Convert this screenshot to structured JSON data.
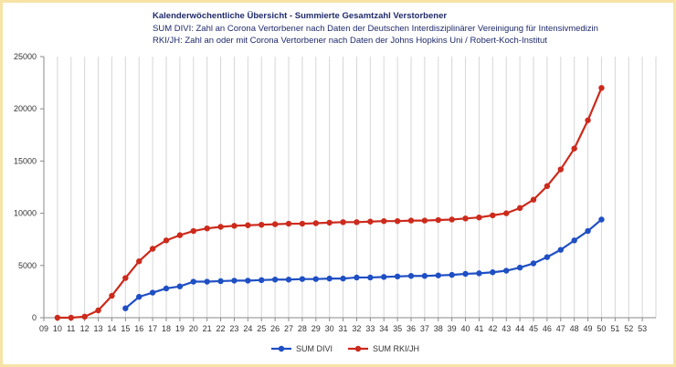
{
  "chart_data": {
    "type": "line",
    "title": "Kalenderwöchentliche  Übersicht  -  Summierte Gesamtzahl Verstorbener",
    "subtitle_lines": [
      "SUM DIVI: Zahl an Corona Vertorbener nach Daten der Deutschen Interdisziplinärer Vereinigung für Intensivmedizin",
      "RKI/JH: Zahl an oder mit Corona  Vertorbener nach Daten der  Johns Hopkins Uni / Robert-Koch-Institut"
    ],
    "xlabel": "",
    "ylabel": "",
    "x_ticks": [
      "09",
      "10",
      "11",
      "12",
      "13",
      "14",
      "15",
      "16",
      "17",
      "18",
      "19",
      "20",
      "21",
      "22",
      "23",
      "24",
      "25",
      "26",
      "27",
      "28",
      "29",
      "30",
      "31",
      "32",
      "33",
      "34",
      "35",
      "36",
      "37",
      "38",
      "39",
      "40",
      "41",
      "42",
      "43",
      "44",
      "45",
      "46",
      "47",
      "48",
      "49",
      "50",
      "51",
      "52",
      "53"
    ],
    "ylim": [
      0,
      25000
    ],
    "y_ticks": [
      0,
      5000,
      10000,
      15000,
      20000,
      25000
    ],
    "grid": "vertical",
    "legend": "bottom",
    "series": [
      {
        "name": "SUM DIVI",
        "color": "#1f4fc4",
        "x": [
          "15",
          "16",
          "17",
          "18",
          "19",
          "20",
          "21",
          "22",
          "23",
          "24",
          "25",
          "26",
          "27",
          "28",
          "29",
          "30",
          "31",
          "32",
          "33",
          "34",
          "35",
          "36",
          "37",
          "38",
          "39",
          "40",
          "41",
          "42",
          "43",
          "44",
          "45",
          "46",
          "47",
          "48",
          "49",
          "50"
        ],
        "values": [
          900,
          2000,
          2400,
          2800,
          3000,
          3450,
          3450,
          3500,
          3550,
          3550,
          3600,
          3650,
          3650,
          3700,
          3700,
          3750,
          3750,
          3850,
          3850,
          3900,
          3950,
          4000,
          4000,
          4050,
          4100,
          4200,
          4250,
          4350,
          4500,
          4800,
          5200,
          5800,
          6500,
          7400,
          8300,
          9400
        ]
      },
      {
        "name": "SUM RKI/JH",
        "color": "#cc2a1c",
        "x": [
          "10",
          "11",
          "12",
          "13",
          "14",
          "15",
          "16",
          "17",
          "18",
          "19",
          "20",
          "21",
          "22",
          "23",
          "24",
          "25",
          "26",
          "27",
          "28",
          "29",
          "30",
          "31",
          "32",
          "33",
          "34",
          "35",
          "36",
          "37",
          "38",
          "39",
          "40",
          "41",
          "42",
          "43",
          "44",
          "45",
          "46",
          "47",
          "48",
          "49",
          "50"
        ],
        "values": [
          0,
          0,
          100,
          700,
          2100,
          3800,
          5400,
          6600,
          7400,
          7900,
          8300,
          8550,
          8700,
          8800,
          8850,
          8900,
          8950,
          9000,
          9000,
          9050,
          9100,
          9150,
          9150,
          9200,
          9250,
          9250,
          9300,
          9300,
          9350,
          9400,
          9500,
          9600,
          9800,
          10000,
          10500,
          11300,
          12600,
          14200,
          16200,
          18900,
          22000
        ]
      }
    ]
  }
}
